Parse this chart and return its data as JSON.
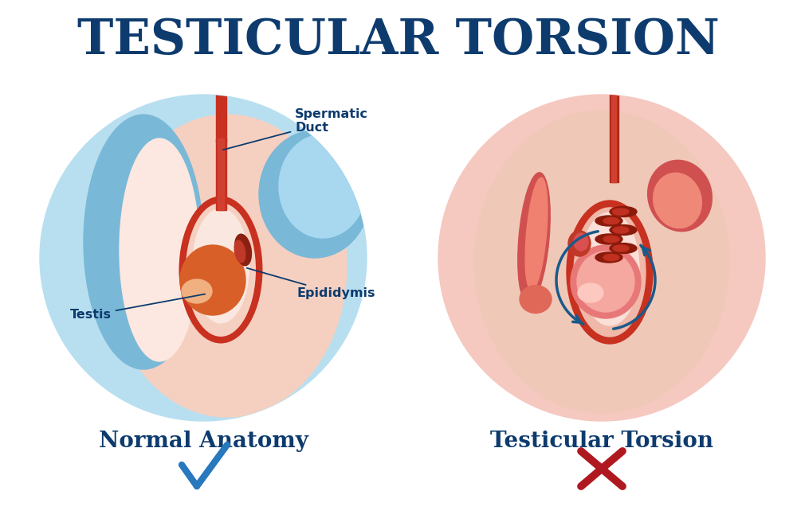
{
  "title": "TESTICULAR TORSION",
  "title_color": "#0d3b6e",
  "title_fontsize": 44,
  "bg_color": "#ffffff",
  "left_label": "Normal Anatomy",
  "right_label": "Testicular Torsion",
  "label_color": "#0d3b6e",
  "label_fontsize": 20,
  "check_color": "#2878be",
  "x_color": "#b01820",
  "ann_color": "#0d3b6e",
  "ann_fontsize": 11.5,
  "left_bg": "#b8dff0",
  "right_bg": "#f5c8c0",
  "skin_pink": "#f5d0c0",
  "skin_light": "#fce8e0",
  "scrotal_red": "#c83020",
  "scrotal_dark": "#9a1a08",
  "testis_orange": "#d86028",
  "testis_light": "#e89060",
  "testis_highlight": "#f0b080",
  "blue_wall": "#7ab8d8",
  "blue_wall_light": "#b8d8f0",
  "epi_dark": "#8b2010",
  "torsion_pink": "#e87878",
  "torsion_light": "#f5a8a0",
  "cord_red": "#b82818",
  "right_tissue": "#d05050",
  "right_tissue2": "#e87060"
}
